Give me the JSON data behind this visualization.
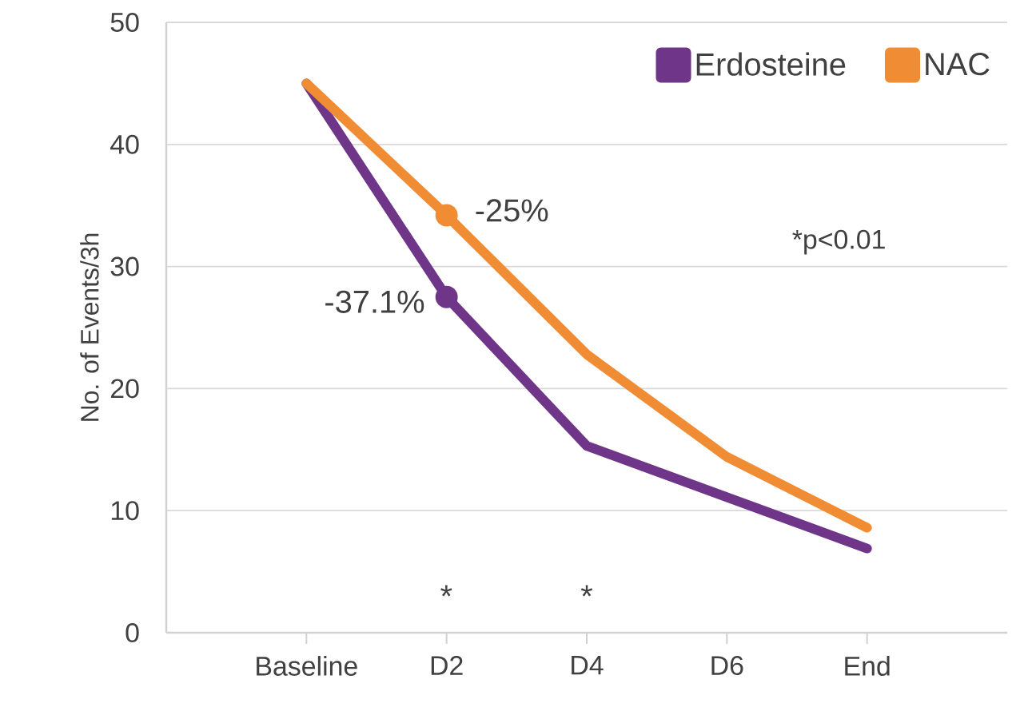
{
  "chart_data": {
    "type": "line",
    "ylabel": "No. of Events/3h",
    "categories": [
      "Baseline",
      "D2",
      "D4",
      "D6",
      "End"
    ],
    "series": [
      {
        "name": "Erdosteine",
        "color": "#6f3589",
        "values": [
          45,
          27.5,
          15.3,
          11.1,
          6.9
        ]
      },
      {
        "name": "NAC",
        "color": "#f08c33",
        "values": [
          45,
          34.2,
          22.8,
          14.4,
          8.6
        ]
      }
    ],
    "ylim": [
      0,
      50
    ],
    "yticks": [
      0,
      10,
      20,
      30,
      40,
      50
    ],
    "grid": "y",
    "legend": "top right",
    "marker": "none",
    "line_style": "solid",
    "annotations": [
      {
        "text": "-25%",
        "x": "D2",
        "y": 34.2
      },
      {
        "text": "-37.1%",
        "x": "D2",
        "y": 27.5
      },
      "*",
      "*",
      "*p<0.01"
    ]
  }
}
